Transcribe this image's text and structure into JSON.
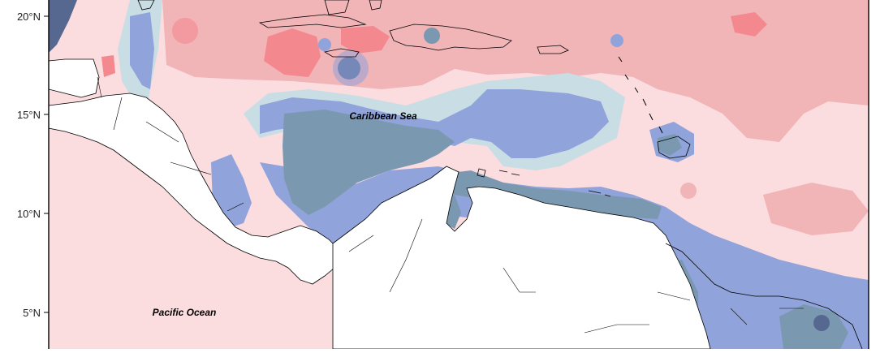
{
  "map": {
    "lat_ticks": [
      "20°N",
      "15°N",
      "10°N",
      "5°N"
    ],
    "labels": {
      "sea": "Caribbean Sea",
      "ocean": "Pacific Ocean"
    },
    "palette": {
      "red_light": "#fbdde0",
      "red_mid": "#f1b4b7",
      "red_strong": "#f4888f",
      "blue_light": "#c9dde4",
      "blue_mid": "#91a3db",
      "blue_dark": "#7b98b1",
      "blue_deep": "#56688f",
      "land": "#ffffff",
      "outline": "#000000"
    }
  }
}
